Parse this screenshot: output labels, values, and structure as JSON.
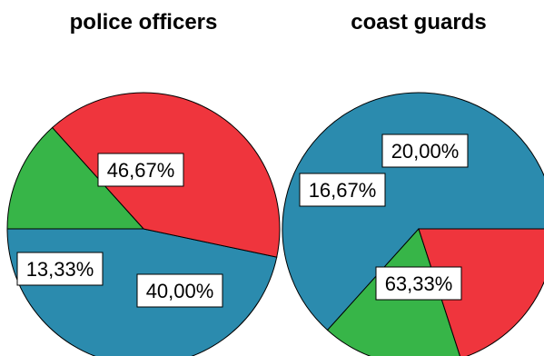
{
  "chart_data": [
    {
      "type": "pie",
      "title": "police officers",
      "slices": [
        {
          "label": "46,67%",
          "value": 46.67,
          "color": "#2b8bae"
        },
        {
          "label": "40,00%",
          "value": 40.0,
          "color": "#ef353d"
        },
        {
          "label": "13,33%",
          "value": 13.33,
          "color": "#37b548"
        }
      ]
    },
    {
      "type": "pie",
      "title": "coast guards",
      "slices": [
        {
          "label": "63,33%",
          "value": 63.33,
          "color": "#2b8bae"
        },
        {
          "label": "16,67%",
          "value": 16.67,
          "color": "#37b548"
        },
        {
          "label": "20,00%",
          "value": 20.0,
          "color": "#ef353d"
        }
      ]
    }
  ]
}
